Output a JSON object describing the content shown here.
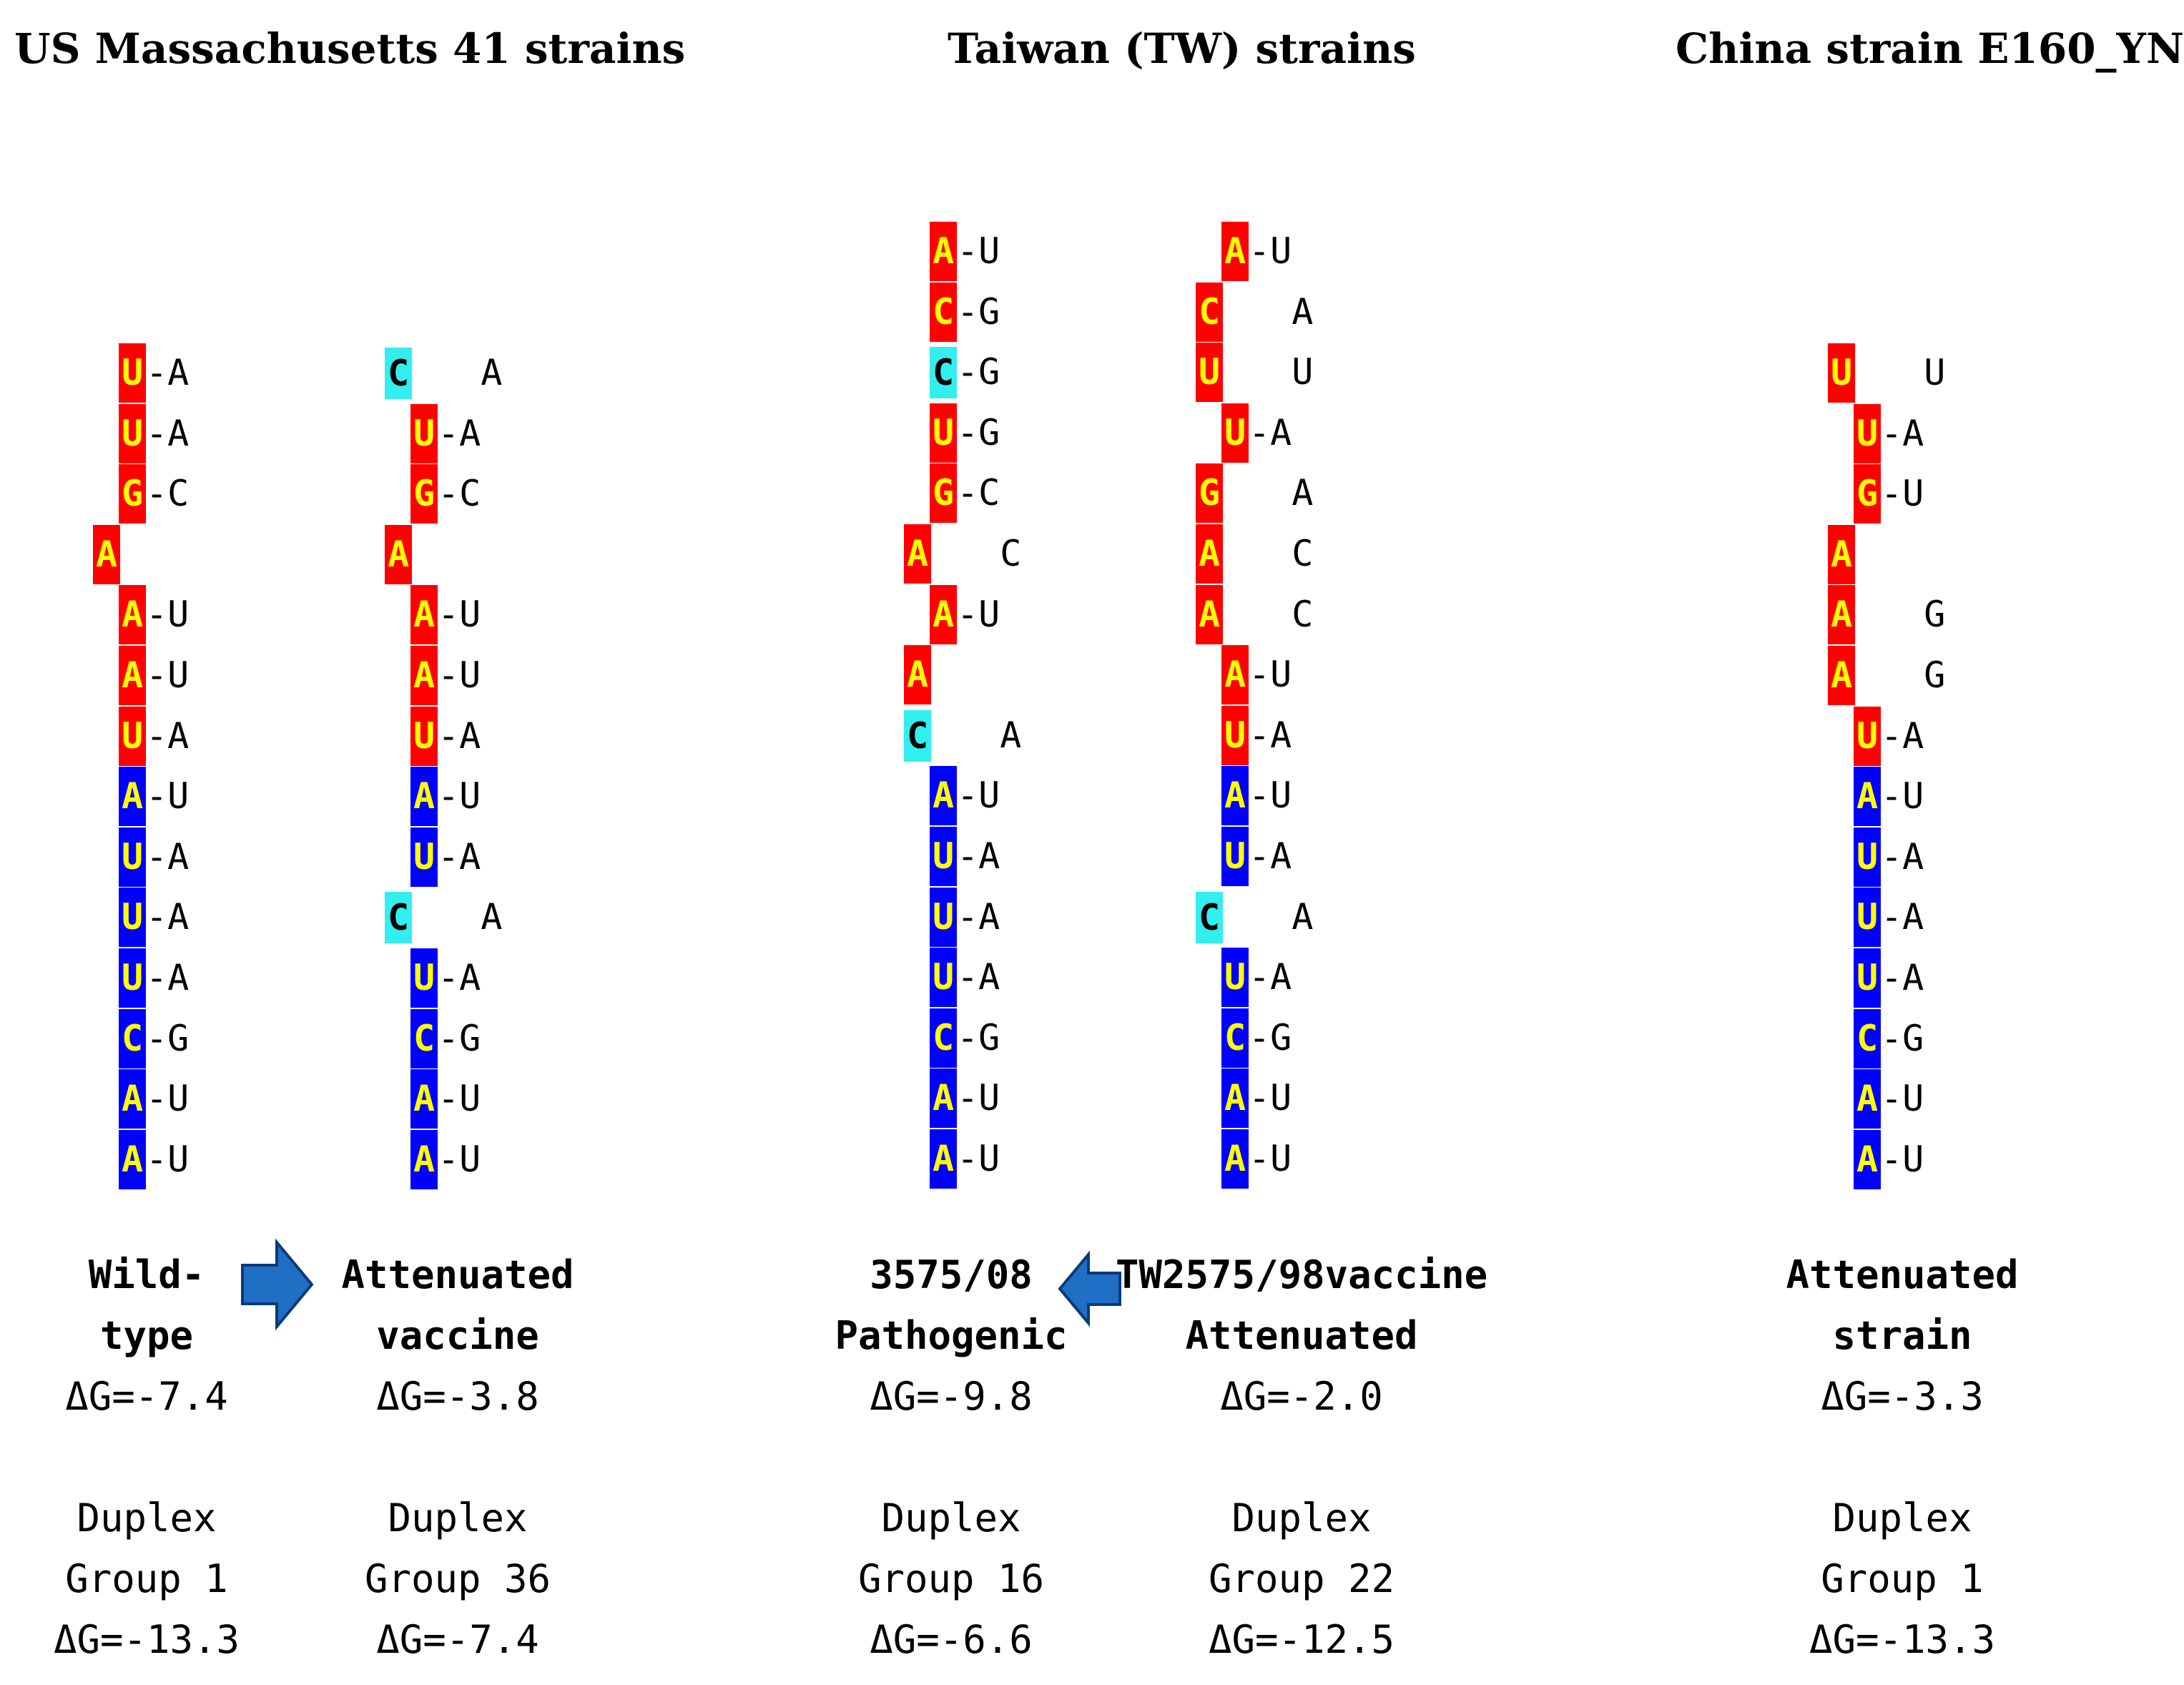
{
  "titles": {
    "us": "US Massachusetts 41  strains",
    "tw": "Taiwan (TW) strains",
    "cn": "China strain E160_YN"
  },
  "colors": {
    "loop_red": "#ff0000",
    "stem_blue": "#0000ff",
    "mutation_cyan": "#33eeee",
    "base_text": "#ffff00",
    "arrow_fill": "#1f6fc4",
    "arrow_edge": "#0b3a7a"
  },
  "arrows": [
    {
      "name": "arrow-right-icon",
      "direction": "right"
    },
    {
      "name": "arrow-left-icon",
      "direction": "left"
    }
  ],
  "duplexes": [
    {
      "id": "us-wild-type",
      "rows": [
        {
          "b": "U",
          "c": "red",
          "o": 1,
          "p": "-A"
        },
        {
          "b": "U",
          "c": "red",
          "o": 1,
          "p": "-A"
        },
        {
          "b": "G",
          "c": "red",
          "o": 1,
          "p": "-C"
        },
        {
          "b": "A",
          "c": "red",
          "o": 0,
          "p": ""
        },
        {
          "b": "A",
          "c": "red",
          "o": 1,
          "p": "-U"
        },
        {
          "b": "A",
          "c": "red",
          "o": 1,
          "p": "-U"
        },
        {
          "b": "U",
          "c": "red",
          "o": 1,
          "p": "-A"
        },
        {
          "b": "A",
          "c": "blue",
          "o": 1,
          "p": "-U"
        },
        {
          "b": "U",
          "c": "blue",
          "o": 1,
          "p": "-A"
        },
        {
          "b": "U",
          "c": "blue",
          "o": 1,
          "p": "-A"
        },
        {
          "b": "U",
          "c": "blue",
          "o": 1,
          "p": "-A"
        },
        {
          "b": "C",
          "c": "blue",
          "o": 1,
          "p": "-G"
        },
        {
          "b": "A",
          "c": "blue",
          "o": 1,
          "p": "-U"
        },
        {
          "b": "A",
          "c": "blue",
          "o": 1,
          "p": "-U"
        }
      ],
      "label": [
        "Wild-",
        "type"
      ],
      "dg": "ΔG=-7.4",
      "duplex_group": [
        "Duplex",
        "Group 1"
      ],
      "duplex_dg": "ΔG=-13.3"
    },
    {
      "id": "us-attenuated-vaccine",
      "rows": [
        {
          "b": "C",
          "c": "cyan",
          "o": 0,
          "p": "  A"
        },
        {
          "b": "U",
          "c": "red",
          "o": 1,
          "p": "-A"
        },
        {
          "b": "G",
          "c": "red",
          "o": 1,
          "p": "-C"
        },
        {
          "b": "A",
          "c": "red",
          "o": 0,
          "p": ""
        },
        {
          "b": "A",
          "c": "red",
          "o": 1,
          "p": "-U"
        },
        {
          "b": "A",
          "c": "red",
          "o": 1,
          "p": "-U"
        },
        {
          "b": "U",
          "c": "red",
          "o": 1,
          "p": "-A"
        },
        {
          "b": "A",
          "c": "blue",
          "o": 1,
          "p": "-U"
        },
        {
          "b": "U",
          "c": "blue",
          "o": 1,
          "p": "-A"
        },
        {
          "b": "C",
          "c": "cyan",
          "o": 0,
          "p": "  A"
        },
        {
          "b": "U",
          "c": "blue",
          "o": 1,
          "p": "-A"
        },
        {
          "b": "C",
          "c": "blue",
          "o": 1,
          "p": "-G"
        },
        {
          "b": "A",
          "c": "blue",
          "o": 1,
          "p": "-U"
        },
        {
          "b": "A",
          "c": "blue",
          "o": 1,
          "p": "-U"
        }
      ],
      "label": [
        "Attenuated",
        "vaccine"
      ],
      "dg": "ΔG=-3.8",
      "duplex_group": [
        "Duplex",
        "Group 36"
      ],
      "duplex_dg": "ΔG=-7.4"
    },
    {
      "id": "tw-3575-08",
      "rows": [
        {
          "b": "A",
          "c": "red",
          "o": 1,
          "p": "-U"
        },
        {
          "b": "C",
          "c": "red",
          "o": 1,
          "p": "-G"
        },
        {
          "b": "C",
          "c": "cyan",
          "o": 1,
          "p": "-G"
        },
        {
          "b": "U",
          "c": "red",
          "o": 1,
          "p": "-G"
        },
        {
          "b": "G",
          "c": "red",
          "o": 1,
          "p": "-C"
        },
        {
          "b": "A",
          "c": "red",
          "o": 0,
          "p": "  C"
        },
        {
          "b": "A",
          "c": "red",
          "o": 1,
          "p": "-U"
        },
        {
          "b": "A",
          "c": "red",
          "o": 0,
          "p": ""
        },
        {
          "b": "C",
          "c": "cyan",
          "o": 0,
          "p": "  A"
        },
        {
          "b": "A",
          "c": "blue",
          "o": 1,
          "p": "-U"
        },
        {
          "b": "U",
          "c": "blue",
          "o": 1,
          "p": "-A"
        },
        {
          "b": "U",
          "c": "blue",
          "o": 1,
          "p": "-A"
        },
        {
          "b": "U",
          "c": "blue",
          "o": 1,
          "p": "-A"
        },
        {
          "b": "C",
          "c": "blue",
          "o": 1,
          "p": "-G"
        },
        {
          "b": "A",
          "c": "blue",
          "o": 1,
          "p": "-U"
        },
        {
          "b": "A",
          "c": "blue",
          "o": 1,
          "p": "-U"
        }
      ],
      "label": [
        "3575/08",
        "Pathogenic"
      ],
      "dg": "ΔG=-9.8",
      "duplex_group": [
        "Duplex",
        "Group 16"
      ],
      "duplex_dg": "ΔG=-6.6"
    },
    {
      "id": "tw-2575-98-vaccine",
      "rows": [
        {
          "b": "A",
          "c": "red",
          "o": 1,
          "p": "-U"
        },
        {
          "b": "C",
          "c": "red",
          "o": 0,
          "p": "  A"
        },
        {
          "b": "U",
          "c": "red",
          "o": 0,
          "p": "  U"
        },
        {
          "b": "U",
          "c": "red",
          "o": 1,
          "p": "-A"
        },
        {
          "b": "G",
          "c": "red",
          "o": 0,
          "p": "  A"
        },
        {
          "b": "A",
          "c": "red",
          "o": 0,
          "p": "  C"
        },
        {
          "b": "A",
          "c": "red",
          "o": 0,
          "p": "  C"
        },
        {
          "b": "A",
          "c": "red",
          "o": 1,
          "p": "-U"
        },
        {
          "b": "U",
          "c": "red",
          "o": 1,
          "p": "-A"
        },
        {
          "b": "A",
          "c": "blue",
          "o": 1,
          "p": "-U"
        },
        {
          "b": "U",
          "c": "blue",
          "o": 1,
          "p": "-A"
        },
        {
          "b": "C",
          "c": "cyan",
          "o": 0,
          "p": "  A"
        },
        {
          "b": "U",
          "c": "blue",
          "o": 1,
          "p": "-A"
        },
        {
          "b": "C",
          "c": "blue",
          "o": 1,
          "p": "-G"
        },
        {
          "b": "A",
          "c": "blue",
          "o": 1,
          "p": "-U"
        },
        {
          "b": "A",
          "c": "blue",
          "o": 1,
          "p": "-U"
        }
      ],
      "label": [
        "TW2575/98vaccine",
        "Attenuated"
      ],
      "dg": "ΔG=-2.0",
      "duplex_group": [
        "Duplex",
        "Group 22"
      ],
      "duplex_dg": "ΔG=-12.5"
    },
    {
      "id": "cn-e160-yn",
      "rows": [
        {
          "b": "U",
          "c": "red",
          "o": 0,
          "p": "  U"
        },
        {
          "b": "U",
          "c": "red",
          "o": 1,
          "p": "-A"
        },
        {
          "b": "G",
          "c": "red",
          "o": 1,
          "p": "-U"
        },
        {
          "b": "A",
          "c": "red",
          "o": 0,
          "p": ""
        },
        {
          "b": "A",
          "c": "red",
          "o": 0,
          "p": "  G"
        },
        {
          "b": "A",
          "c": "red",
          "o": 0,
          "p": "  G"
        },
        {
          "b": "U",
          "c": "red",
          "o": 1,
          "p": "-A"
        },
        {
          "b": "A",
          "c": "blue",
          "o": 1,
          "p": "-U"
        },
        {
          "b": "U",
          "c": "blue",
          "o": 1,
          "p": "-A"
        },
        {
          "b": "U",
          "c": "blue",
          "o": 1,
          "p": "-A"
        },
        {
          "b": "U",
          "c": "blue",
          "o": 1,
          "p": "-A"
        },
        {
          "b": "C",
          "c": "blue",
          "o": 1,
          "p": "-G"
        },
        {
          "b": "A",
          "c": "blue",
          "o": 1,
          "p": "-U"
        },
        {
          "b": "A",
          "c": "blue",
          "o": 1,
          "p": "-U"
        }
      ],
      "label": [
        "Attenuated",
        "strain"
      ],
      "dg": "ΔG=-3.3",
      "duplex_group": [
        "Duplex",
        "Group 1"
      ],
      "duplex_dg": "ΔG=-13.3"
    }
  ]
}
